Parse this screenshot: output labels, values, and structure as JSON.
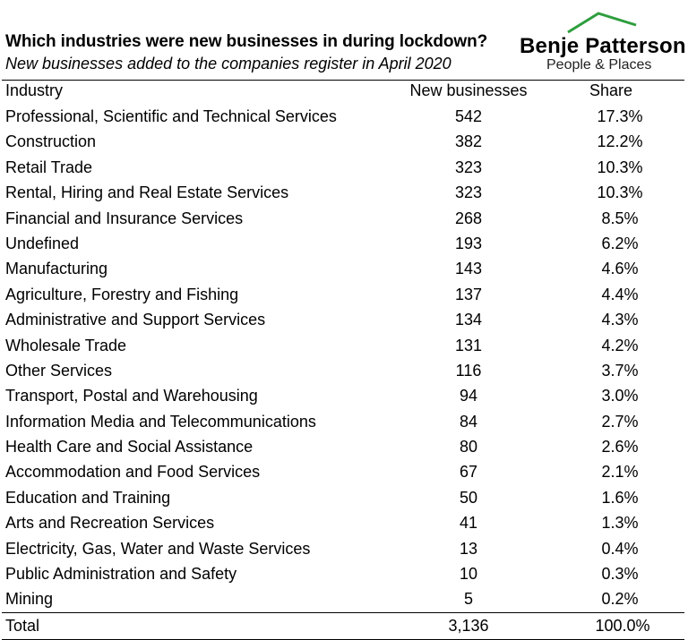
{
  "title": "Which industries were new businesses in during lockdown?",
  "subtitle": "New businesses added to the companies register in April 2020",
  "logo": {
    "name": "Benje Patterson",
    "tagline": "People & Places",
    "color": "#2e9e3e"
  },
  "chart_data": {
    "type": "table",
    "columns": [
      "Industry",
      "New businesses",
      "Share"
    ],
    "rows": [
      {
        "industry": "Professional, Scientific and Technical Services",
        "count": "542",
        "share": "17.3%"
      },
      {
        "industry": "Construction",
        "count": "382",
        "share": "12.2%"
      },
      {
        "industry": "Retail Trade",
        "count": "323",
        "share": "10.3%"
      },
      {
        "industry": "Rental, Hiring and Real Estate Services",
        "count": "323",
        "share": "10.3%"
      },
      {
        "industry": "Financial and Insurance Services",
        "count": "268",
        "share": "8.5%"
      },
      {
        "industry": "Undefined",
        "count": "193",
        "share": "6.2%"
      },
      {
        "industry": "Manufacturing",
        "count": "143",
        "share": "4.6%"
      },
      {
        "industry": "Agriculture, Forestry and Fishing",
        "count": "137",
        "share": "4.4%"
      },
      {
        "industry": "Administrative and Support Services",
        "count": "134",
        "share": "4.3%"
      },
      {
        "industry": "Wholesale Trade",
        "count": "131",
        "share": "4.2%"
      },
      {
        "industry": "Other Services",
        "count": "116",
        "share": "3.7%"
      },
      {
        "industry": "Transport, Postal and Warehousing",
        "count": "94",
        "share": "3.0%"
      },
      {
        "industry": "Information Media and Telecommunications",
        "count": "84",
        "share": "2.7%"
      },
      {
        "industry": "Health Care and Social Assistance",
        "count": "80",
        "share": "2.6%"
      },
      {
        "industry": "Accommodation and Food Services",
        "count": "67",
        "share": "2.1%"
      },
      {
        "industry": "Education and Training",
        "count": "50",
        "share": "1.6%"
      },
      {
        "industry": "Arts and Recreation Services",
        "count": "41",
        "share": "1.3%"
      },
      {
        "industry": "Electricity, Gas, Water and Waste Services",
        "count": "13",
        "share": "0.4%"
      },
      {
        "industry": "Public Administration and Safety",
        "count": "10",
        "share": "0.3%"
      },
      {
        "industry": "Mining",
        "count": "5",
        "share": "0.2%"
      }
    ],
    "total": {
      "label": "Total",
      "count": "3,136",
      "share": "100.0%"
    }
  }
}
